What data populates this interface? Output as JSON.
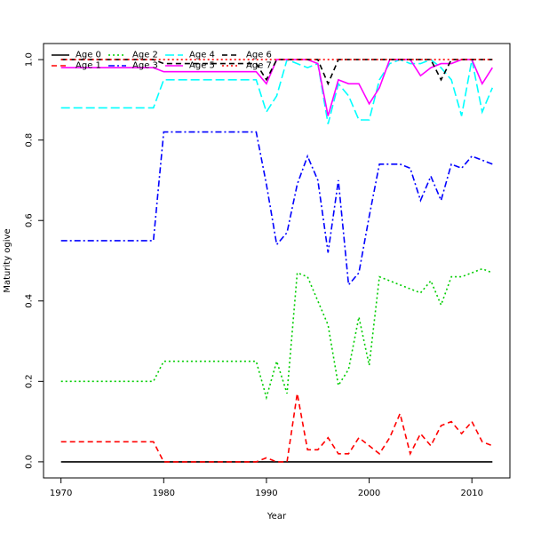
{
  "chart_data": {
    "type": "line",
    "title": "",
    "xlabel": "Year",
    "ylabel": "Maturity ogive",
    "xlim": [
      1968.3,
      1972.7
    ],
    "x_ticks": [
      1970,
      1980,
      1990,
      2000,
      2010
    ],
    "y_ticks": [
      0.0,
      0.2,
      0.4,
      0.6,
      0.8,
      1.0
    ],
    "y_tick_labels": [
      "0.0",
      "0.2",
      "0.4",
      "0.6",
      "0.8",
      "1.0"
    ],
    "ylim": [
      -0.04,
      1.04
    ],
    "grid": false,
    "legend_position": "top-left",
    "legend_columns": 4,
    "x": [
      1970,
      1971,
      1972,
      1973,
      1974,
      1975,
      1976,
      1977,
      1978,
      1979,
      1980,
      1981,
      1982,
      1983,
      1984,
      1985,
      1986,
      1987,
      1988,
      1989,
      1990,
      1991,
      1992,
      1993,
      1994,
      1995,
      1996,
      1997,
      1998,
      1999,
      2000,
      2001,
      2002,
      2003,
      2004,
      2005,
      2006,
      2007,
      2008,
      2009,
      2010,
      2011,
      2012
    ],
    "series": [
      {
        "name": "Age 0",
        "color": "#000000",
        "dash": "solid",
        "values": [
          0,
          0,
          0,
          0,
          0,
          0,
          0,
          0,
          0,
          0,
          0,
          0,
          0,
          0,
          0,
          0,
          0,
          0,
          0,
          0,
          0,
          0,
          0,
          0,
          0,
          0,
          0,
          0,
          0,
          0,
          0,
          0,
          0,
          0,
          0,
          0,
          0,
          0,
          0,
          0,
          0,
          0,
          0
        ]
      },
      {
        "name": "Age 1",
        "color": "#ff0000",
        "dash": "dashed",
        "values": [
          0.05,
          0.05,
          0.05,
          0.05,
          0.05,
          0.05,
          0.05,
          0.05,
          0.05,
          0.05,
          0.0,
          0.0,
          0.0,
          0.0,
          0.0,
          0.0,
          0.0,
          0.0,
          0.0,
          0.0,
          0.01,
          0.0,
          0.0,
          0.17,
          0.03,
          0.03,
          0.06,
          0.02,
          0.02,
          0.06,
          0.04,
          0.02,
          0.06,
          0.12,
          0.02,
          0.07,
          0.04,
          0.09,
          0.1,
          0.07,
          0.1,
          0.05,
          0.04
        ]
      },
      {
        "name": "Age 2",
        "color": "#00cd00",
        "dash": "dotted",
        "values": [
          0.2,
          0.2,
          0.2,
          0.2,
          0.2,
          0.2,
          0.2,
          0.2,
          0.2,
          0.2,
          0.25,
          0.25,
          0.25,
          0.25,
          0.25,
          0.25,
          0.25,
          0.25,
          0.25,
          0.25,
          0.16,
          0.25,
          0.17,
          0.47,
          0.46,
          0.4,
          0.34,
          0.19,
          0.23,
          0.36,
          0.24,
          0.46,
          0.45,
          0.44,
          0.43,
          0.42,
          0.45,
          0.39,
          0.46,
          0.46,
          0.47,
          0.48,
          0.47
        ]
      },
      {
        "name": "Age 3",
        "color": "#0000ff",
        "dash": "dashdot",
        "values": [
          0.55,
          0.55,
          0.55,
          0.55,
          0.55,
          0.55,
          0.55,
          0.55,
          0.55,
          0.55,
          0.82,
          0.82,
          0.82,
          0.82,
          0.82,
          0.82,
          0.82,
          0.82,
          0.82,
          0.82,
          0.69,
          0.54,
          0.57,
          0.69,
          0.76,
          0.7,
          0.52,
          0.7,
          0.44,
          0.47,
          0.61,
          0.74,
          0.74,
          0.74,
          0.73,
          0.65,
          0.71,
          0.65,
          0.74,
          0.73,
          0.76,
          0.75,
          0.74
        ]
      },
      {
        "name": "Age 4",
        "color": "#00ffff",
        "dash": "longdash",
        "values": [
          0.88,
          0.88,
          0.88,
          0.88,
          0.88,
          0.88,
          0.88,
          0.88,
          0.88,
          0.88,
          0.95,
          0.95,
          0.95,
          0.95,
          0.95,
          0.95,
          0.95,
          0.95,
          0.95,
          0.95,
          0.87,
          0.91,
          1.0,
          0.99,
          0.98,
          0.99,
          0.84,
          0.94,
          0.91,
          0.85,
          0.85,
          0.95,
          0.99,
          1.0,
          0.99,
          0.99,
          1.0,
          0.98,
          0.95,
          0.86,
          1.0,
          0.87,
          0.93
        ]
      },
      {
        "name": "Age 5",
        "color": "#ff00ff",
        "dash": "solid",
        "values": [
          0.98,
          0.98,
          0.98,
          0.98,
          0.98,
          0.98,
          0.98,
          0.98,
          0.98,
          0.98,
          0.97,
          0.97,
          0.97,
          0.97,
          0.97,
          0.97,
          0.97,
          0.97,
          0.97,
          0.97,
          0.94,
          1.0,
          1.0,
          1.0,
          1.0,
          0.99,
          0.86,
          0.95,
          0.94,
          0.94,
          0.89,
          0.93,
          1.0,
          1.0,
          1.0,
          0.96,
          0.98,
          0.99,
          0.99,
          1.0,
          1.0,
          0.94,
          0.98
        ]
      },
      {
        "name": "Age 6",
        "color": "#000000",
        "dash": "dashed",
        "values": [
          1.0,
          1.0,
          1.0,
          1.0,
          1.0,
          1.0,
          1.0,
          1.0,
          1.0,
          1.0,
          0.99,
          0.99,
          0.99,
          0.99,
          0.99,
          0.99,
          0.99,
          0.99,
          0.99,
          0.99,
          0.95,
          1.0,
          1.0,
          1.0,
          1.0,
          1.0,
          0.94,
          1.0,
          1.0,
          1.0,
          1.0,
          1.0,
          1.0,
          1.0,
          1.0,
          1.0,
          1.0,
          0.95,
          1.0,
          1.0,
          1.0,
          1.0,
          1.0
        ]
      },
      {
        "name": "Age 7",
        "color": "#ff0000",
        "dash": "dotted",
        "values": [
          1.0,
          1.0,
          1.0,
          1.0,
          1.0,
          1.0,
          1.0,
          1.0,
          1.0,
          1.0,
          1.0,
          1.0,
          1.0,
          1.0,
          1.0,
          1.0,
          1.0,
          1.0,
          1.0,
          1.0,
          1.0,
          1.0,
          1.0,
          1.0,
          1.0,
          1.0,
          1.0,
          1.0,
          1.0,
          1.0,
          1.0,
          1.0,
          1.0,
          1.0,
          1.0,
          1.0,
          1.0,
          1.0,
          1.0,
          1.0,
          1.0,
          1.0,
          1.0
        ]
      }
    ]
  }
}
